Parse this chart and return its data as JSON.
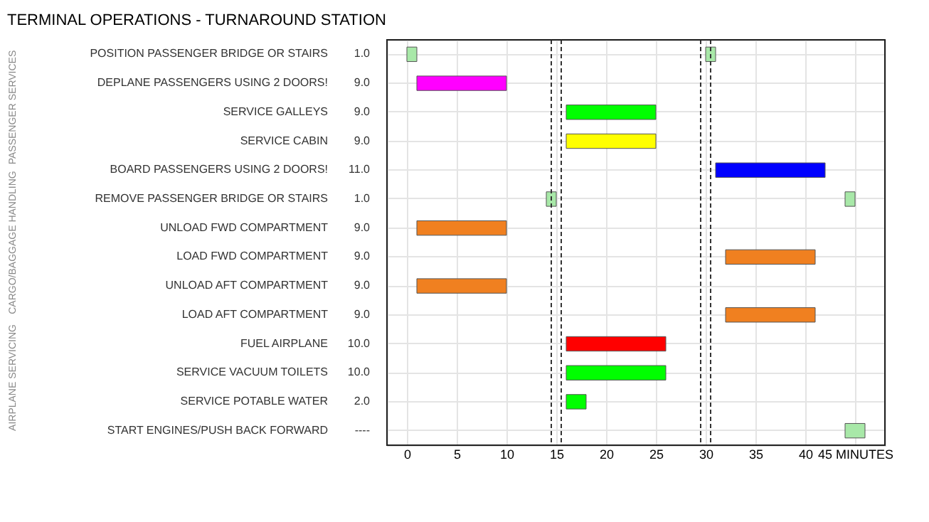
{
  "chart_data": {
    "type": "bar",
    "orientation": "horizontal",
    "title": "TERMINAL OPERATIONS - TURNAROUND STATION",
    "categories": [
      "POSITION PASSENGER BRIDGE OR STAIRS",
      "DEPLANE PASSENGERS USING 2 DOORS!",
      "SERVICE GALLEYS",
      "SERVICE CABIN",
      "BOARD PASSENGERS USING 2 DOORS!",
      "REMOVE PASSENGER BRIDGE OR STAIRS",
      "UNLOAD FWD COMPARTMENT",
      "LOAD FWD COMPARTMENT",
      "UNLOAD AFT COMPARTMENT",
      "LOAD AFT COMPARTMENT",
      "FUEL AIRPLANE",
      "SERVICE VACUUM TOILETS",
      "SERVICE POTABLE WATER",
      "START ENGINES/PUSH BACK FORWARD"
    ],
    "series": [
      {
        "colors": [
          "#a8e8a8",
          "#ff00ff",
          "#00ff00",
          "#ffff00",
          "#0000ff",
          "#a8e8a8",
          "#f08020",
          "#f08020",
          "#f08020",
          "#f08020",
          "#ff0000",
          "#00ff00",
          "#00ff00",
          "#a8e8a8"
        ],
        "base": [
          0,
          1,
          16,
          16,
          31,
          14,
          1,
          32,
          1,
          32,
          16,
          16,
          16,
          44
        ],
        "values": [
          1,
          9,
          9,
          9,
          11,
          1,
          9,
          9,
          9,
          9,
          10,
          10,
          2,
          2
        ],
        "value_labels": [
          "1.0",
          "9.0",
          "9.0",
          "9.0",
          "11.0",
          "1.0",
          "9.0",
          "9.0",
          "9.0",
          "9.0",
          "10.0",
          "10.0",
          "2.0",
          "----"
        ]
      },
      {
        "colors": [
          "#a8e8a8",
          null,
          null,
          null,
          null,
          "#a8e8a8",
          null,
          null,
          null,
          null,
          null,
          null,
          null,
          null
        ],
        "base": [
          30,
          null,
          null,
          null,
          null,
          44,
          null,
          null,
          null,
          null,
          null,
          null,
          null,
          null
        ],
        "values": [
          1,
          null,
          null,
          null,
          null,
          1,
          null,
          null,
          null,
          null,
          null,
          null,
          null,
          null
        ]
      }
    ],
    "xlim": [
      -2,
      48
    ],
    "xticks": [
      0,
      5,
      10,
      15,
      20,
      25,
      30,
      35,
      40,
      {
        "value": 45,
        "label": "45 MINUTES"
      }
    ],
    "ref_lines": [
      {
        "axis": "x",
        "value": 14.5,
        "line_style": "dashed"
      },
      {
        "axis": "x",
        "value": 15.5,
        "line_style": "dashed"
      },
      {
        "axis": "x",
        "value": 29.5,
        "line_style": "dashed"
      },
      {
        "axis": "x",
        "value": 30.5,
        "line_style": "dashed"
      }
    ],
    "annotations": [
      "PASSENGER SERVICES",
      "CARGO/BAGGAGE HANDLING",
      "AIRPLANE SERVICING"
    ],
    "grid": true
  }
}
